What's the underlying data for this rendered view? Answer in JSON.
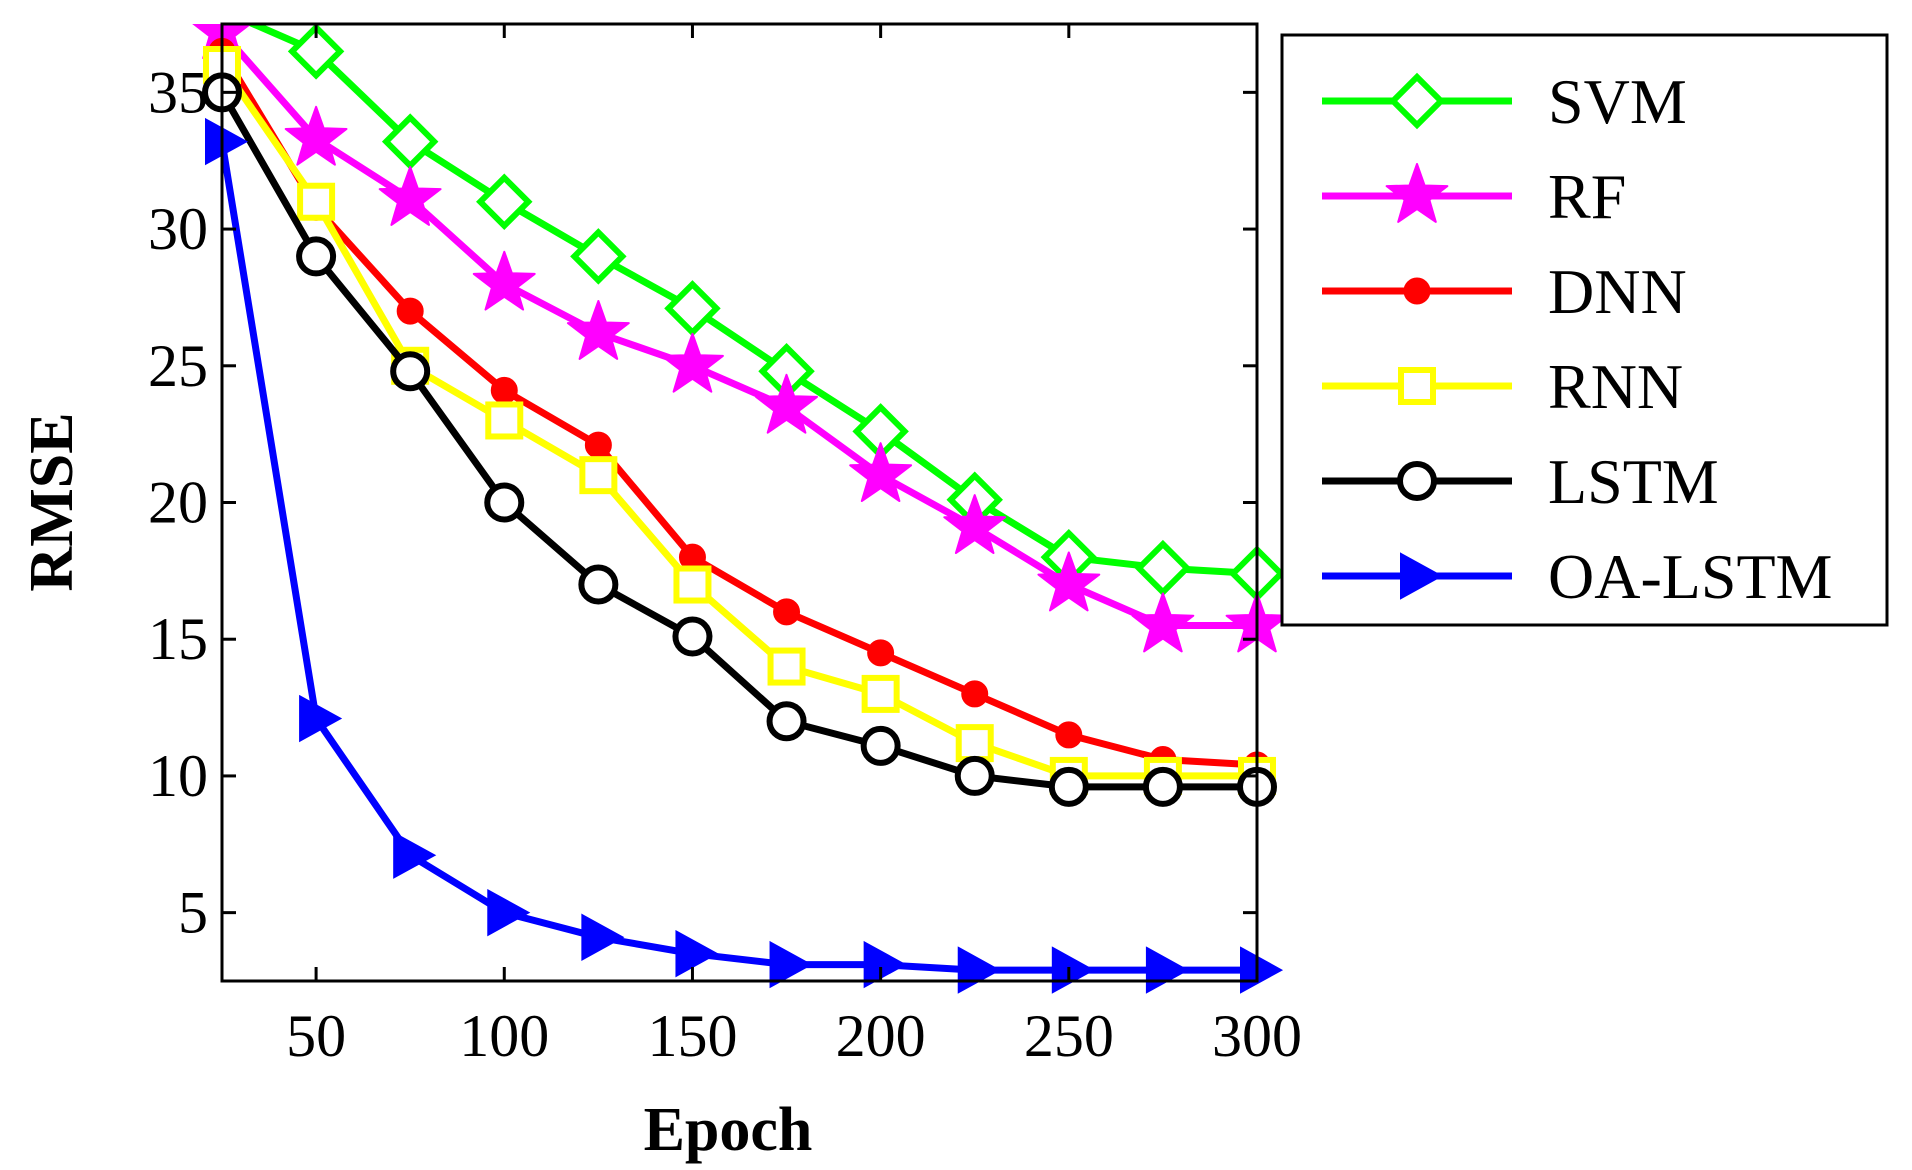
{
  "chart_data": {
    "type": "line",
    "title": "",
    "xlabel": "Epoch",
    "ylabel": "RMSE",
    "xlim": [
      25,
      300
    ],
    "ylim": [
      2.5,
      37.5
    ],
    "xticks": [
      50,
      100,
      150,
      200,
      250,
      300
    ],
    "yticks": [
      5,
      10,
      15,
      20,
      25,
      30,
      35
    ],
    "legend_position": "top-right-outside",
    "x": [
      25,
      50,
      75,
      100,
      125,
      150,
      175,
      200,
      225,
      250,
      275,
      300
    ],
    "series": [
      {
        "name": "SVM",
        "color": "#00ff00",
        "marker": "diamond",
        "values": [
          38.0,
          36.5,
          33.2,
          31.0,
          29.0,
          27.1,
          24.8,
          22.6,
          20.1,
          18.0,
          17.6,
          17.4
        ]
      },
      {
        "name": "RF",
        "color": "#ff00ff",
        "marker": "star",
        "values": [
          37.2,
          33.3,
          31.1,
          28.0,
          26.2,
          25.0,
          23.5,
          21.0,
          19.1,
          17.0,
          15.5,
          15.5
        ]
      },
      {
        "name": "DNN",
        "color": "#ff0000",
        "marker": "dot",
        "values": [
          36.5,
          30.8,
          27.0,
          24.1,
          22.1,
          18.0,
          16.0,
          14.5,
          13.0,
          11.5,
          10.6,
          10.4
        ]
      },
      {
        "name": "RNN",
        "color": "#ffff00",
        "marker": "square",
        "values": [
          36.0,
          31.0,
          25.0,
          23.0,
          21.0,
          17.0,
          14.0,
          13.0,
          11.2,
          10.0,
          10.0,
          10.0
        ]
      },
      {
        "name": "LSTM",
        "color": "#000000",
        "marker": "circle",
        "values": [
          35.0,
          29.0,
          24.8,
          20.0,
          17.0,
          15.1,
          12.0,
          11.1,
          10.0,
          9.6,
          9.6,
          9.6
        ]
      },
      {
        "name": "OA-LSTM",
        "color": "#0000ff",
        "marker": "triangle-right",
        "values": [
          33.2,
          12.1,
          7.1,
          5.0,
          4.1,
          3.5,
          3.1,
          3.1,
          2.9,
          2.9,
          2.9,
          2.9
        ]
      }
    ]
  }
}
